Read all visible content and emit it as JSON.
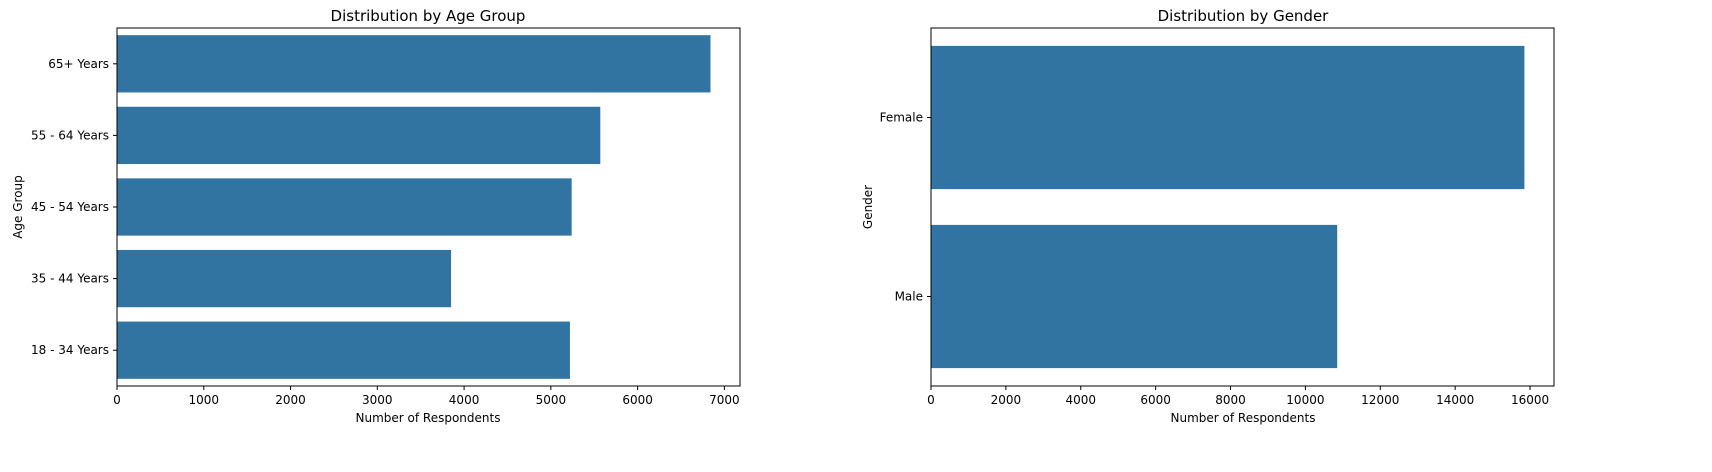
{
  "chart_data": [
    {
      "type": "bar",
      "orientation": "horizontal",
      "title": "Distribution by Age Group",
      "xlabel": "Number of Respondents",
      "ylabel": "Age Group",
      "categories": [
        "65+ Years",
        "55 - 64 Years",
        "45 - 54 Years",
        "35 - 44 Years",
        "18 - 34 Years"
      ],
      "values": [
        6840,
        5570,
        5240,
        3850,
        5220
      ],
      "xlim": [
        0,
        7180
      ],
      "xticks": [
        0,
        1000,
        2000,
        3000,
        4000,
        5000,
        6000,
        7000
      ],
      "xtick_labels": [
        "0",
        "1000",
        "2000",
        "3000",
        "4000",
        "5000",
        "6000",
        "7000"
      ],
      "color": "#3274a1",
      "grid": false
    },
    {
      "type": "bar",
      "orientation": "horizontal",
      "title": "Distribution by Gender",
      "xlabel": "Number of Respondents",
      "ylabel": "Gender",
      "categories": [
        "Female",
        "Male"
      ],
      "values": [
        15850,
        10850
      ],
      "xlim": [
        0,
        16640
      ],
      "xticks": [
        0,
        2000,
        4000,
        6000,
        8000,
        10000,
        12000,
        14000,
        16000
      ],
      "xtick_labels": [
        "0",
        "2000",
        "4000",
        "6000",
        "8000",
        "10000",
        "12000",
        "14000",
        "16000"
      ],
      "color": "#3274a1",
      "grid": false
    }
  ]
}
